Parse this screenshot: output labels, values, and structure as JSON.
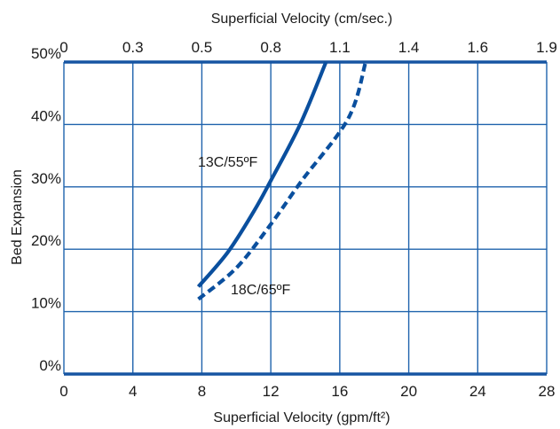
{
  "chart_data": {
    "type": "line",
    "top_axis": {
      "label": "Superficial Velocity (cm/sec.)",
      "tick_labels": [
        "0",
        "0.3",
        "0.5",
        "0.8",
        "1.1",
        "1.4",
        "1.6",
        "1.9"
      ]
    },
    "xlabel": "Superficial Velocity (gpm/ft²)",
    "ylabel": "Bed Expansion",
    "xlim": [
      0,
      28
    ],
    "ylim": [
      0,
      50
    ],
    "x_ticks": [
      0,
      4,
      8,
      12,
      16,
      20,
      24,
      28
    ],
    "x_tick_labels": [
      "0",
      "4",
      "8",
      "12",
      "16",
      "20",
      "24",
      "28"
    ],
    "y_ticks": [
      0,
      10,
      20,
      30,
      40,
      50
    ],
    "y_tick_labels": [
      "0%",
      "10%",
      "20%",
      "30%",
      "40%",
      "50%"
    ],
    "grid": true,
    "colors": {
      "line": "#0a4f9e",
      "grid": "#1f63ad",
      "axis": "#1655a2"
    },
    "series": [
      {
        "name": "13C/55ºF",
        "style": "solid",
        "x": [
          7.8,
          9.5,
          11.0,
          12.0,
          13.7,
          15.2
        ],
        "y": [
          14,
          19.5,
          26,
          31,
          40,
          50
        ]
      },
      {
        "name": "18C/65ºF",
        "style": "dashed",
        "x": [
          7.8,
          10.0,
          12.0,
          13.8,
          16.5,
          17.5
        ],
        "y": [
          12,
          17,
          24,
          31,
          41,
          50
        ]
      }
    ]
  }
}
